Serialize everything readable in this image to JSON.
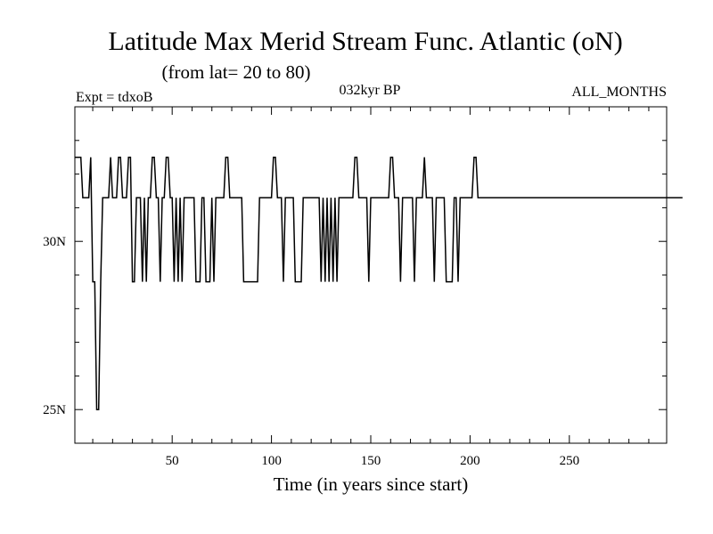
{
  "chart_data": {
    "type": "line",
    "title": "Latitude Max Merid Stream Func. Atlantic (oN)",
    "subtitle": "(from lat= 20 to 80)",
    "experiment_label": "Expt = tdxoB",
    "period_label": "032kyr BP",
    "months_label": "ALL_MONTHS",
    "xlabel": "Time (in years since start)",
    "ylabel": "",
    "xlim": [
      1,
      299
    ],
    "ylim": [
      24,
      34
    ],
    "x_ticks": [
      50,
      100,
      150,
      200,
      250
    ],
    "x_tick_labels": [
      "50",
      "100",
      "150",
      "200",
      "250"
    ],
    "y_ticks": [
      25,
      30
    ],
    "y_tick_labels": [
      "25N",
      "30N"
    ],
    "grid": false,
    "series": [
      {
        "values": [
          32.5,
          32.5,
          32.5,
          32.5,
          31.3,
          31.3,
          31.3,
          31.3,
          32.5,
          28.8,
          28.8,
          25.0,
          25.0,
          28.8,
          31.3,
          31.3,
          31.3,
          31.3,
          32.5,
          31.3,
          31.3,
          31.3,
          32.5,
          32.5,
          31.3,
          31.3,
          31.3,
          32.5,
          32.5,
          28.8,
          28.8,
          31.3,
          31.3,
          31.3,
          28.8,
          31.3,
          28.8,
          31.3,
          31.3,
          32.5,
          32.5,
          31.3,
          31.3,
          28.8,
          31.3,
          31.3,
          32.5,
          32.5,
          31.3,
          31.3,
          28.8,
          31.3,
          28.8,
          31.3,
          28.8,
          31.3,
          31.3,
          31.3,
          31.3,
          31.3,
          31.3,
          28.8,
          28.8,
          28.8,
          31.3,
          31.3,
          28.8,
          28.8,
          28.8,
          31.3,
          28.8,
          31.3,
          31.3,
          31.3,
          31.3,
          31.3,
          32.5,
          32.5,
          31.3,
          31.3,
          31.3,
          31.3,
          31.3,
          31.3,
          31.3,
          28.8,
          28.8,
          28.8,
          28.8,
          28.8,
          28.8,
          28.8,
          28.8,
          31.3,
          31.3,
          31.3,
          31.3,
          31.3,
          31.3,
          31.3,
          32.5,
          32.5,
          31.3,
          31.3,
          31.3,
          28.8,
          31.3,
          31.3,
          31.3,
          31.3,
          31.3,
          28.8,
          28.8,
          28.8,
          28.8,
          31.3,
          31.3,
          31.3,
          31.3,
          31.3,
          31.3,
          31.3,
          31.3,
          31.3,
          28.8,
          31.3,
          28.8,
          31.3,
          28.8,
          31.3,
          28.8,
          31.3,
          28.8,
          31.3,
          31.3,
          31.3,
          31.3,
          31.3,
          31.3,
          31.3,
          31.3,
          32.5,
          32.5,
          31.3,
          31.3,
          31.3,
          31.3,
          31.3,
          28.8,
          31.3,
          31.3,
          31.3,
          31.3,
          31.3,
          31.3,
          31.3,
          31.3,
          31.3,
          31.3,
          32.5,
          32.5,
          31.3,
          31.3,
          31.3,
          28.8,
          31.3,
          31.3,
          31.3,
          31.3,
          31.3,
          31.3,
          28.8,
          31.3,
          31.3,
          31.3,
          31.3,
          32.5,
          31.3,
          31.3,
          31.3,
          31.3,
          28.8,
          31.3,
          31.3,
          31.3,
          31.3,
          31.3,
          28.8,
          28.8,
          28.8,
          28.8,
          31.3,
          31.3,
          28.8,
          31.3,
          31.3,
          31.3,
          31.3,
          31.3,
          31.3,
          31.3,
          32.5,
          32.5,
          31.3,
          31.3,
          31.3,
          31.3,
          31.3,
          31.3,
          31.3,
          31.3,
          31.3,
          31.3,
          31.3,
          31.3,
          31.3,
          31.3,
          31.3,
          31.3,
          31.3,
          31.3,
          31.3,
          31.3,
          31.3,
          31.3,
          31.3,
          31.3,
          31.3,
          31.3,
          31.3,
          31.3,
          31.3,
          31.3,
          31.3,
          31.3,
          31.3,
          31.3,
          31.3,
          31.3,
          31.3,
          31.3,
          31.3,
          31.3,
          31.3,
          31.3,
          31.3,
          31.3,
          31.3,
          31.3,
          31.3,
          31.3,
          31.3,
          31.3,
          31.3,
          31.3,
          31.3,
          31.3,
          31.3,
          31.3,
          31.3,
          31.3,
          31.3,
          31.3,
          31.3,
          31.3,
          31.3,
          31.3,
          31.3,
          31.3,
          31.3,
          31.3,
          31.3,
          31.3,
          31.3,
          31.3,
          31.3,
          31.3,
          31.3,
          31.3,
          31.3,
          31.3,
          31.3,
          31.3,
          31.3,
          31.3,
          31.3,
          31.3,
          31.3,
          31.3,
          31.3,
          31.3,
          31.3,
          31.3,
          31.3,
          31.3,
          31.3,
          31.3,
          31.3,
          31.3,
          31.3,
          31.3,
          31.3,
          31.3,
          31.3,
          31.3,
          31.3,
          31.3
        ]
      }
    ]
  }
}
